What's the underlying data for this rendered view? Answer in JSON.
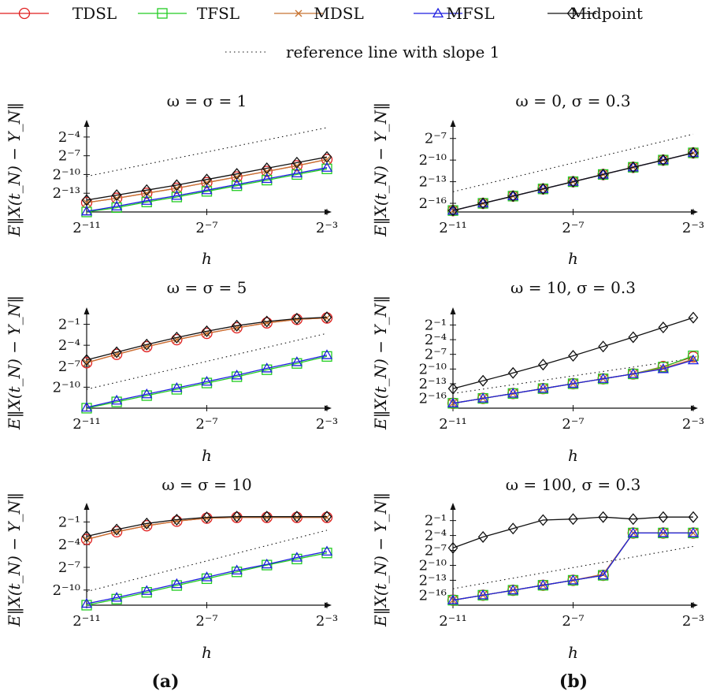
{
  "legend": {
    "items": [
      {
        "label": "TDSL",
        "color": "#e01f1f",
        "marker": "circle"
      },
      {
        "label": "TFSL",
        "color": "#22cc22",
        "marker": "square"
      },
      {
        "label": "MDSL",
        "color": "#c87533",
        "marker": "cross"
      },
      {
        "label": "MFSL",
        "color": "#1f1fe0",
        "marker": "triangle"
      },
      {
        "label": "Midpoint",
        "color": "#111111",
        "marker": "diamond"
      }
    ],
    "reference": "reference line with slope 1"
  },
  "subfig_labels": [
    "(a)",
    "(b)"
  ],
  "chart_data": [
    {
      "type": "line",
      "title": "ω = σ = 1",
      "xlabel": "h",
      "ylabel": "E‖X(t_N) − Y_N‖",
      "x": [
        -11,
        -10,
        -9,
        -8,
        -7,
        -6,
        -5,
        -4,
        -3
      ],
      "xticks": [
        -11,
        -7,
        -3
      ],
      "yticks": [
        -4,
        -7,
        -10,
        -13
      ],
      "ylim": [
        -16,
        -2.5
      ],
      "series": [
        {
          "name": "TDSL",
          "values": [
            -14.5,
            -13.8,
            -13,
            -12.2,
            -11.3,
            -10.4,
            -9.5,
            -8.6,
            -7.6
          ]
        },
        {
          "name": "TFSL",
          "values": [
            -16,
            -15.3,
            -14.4,
            -13.6,
            -12.7,
            -11.8,
            -10.9,
            -10,
            -9.1
          ]
        },
        {
          "name": "MDSL",
          "values": [
            -14.5,
            -13.8,
            -13,
            -12.2,
            -11.3,
            -10.4,
            -9.5,
            -8.6,
            -7.6
          ]
        },
        {
          "name": "MFSL",
          "values": [
            -15.9,
            -15.1,
            -14.2,
            -13.4,
            -12.5,
            -11.6,
            -10.7,
            -9.8,
            -8.9
          ]
        },
        {
          "name": "Midpoint",
          "values": [
            -14.1,
            -13.3,
            -12.5,
            -11.7,
            -10.8,
            -9.9,
            -9,
            -8.1,
            -7.2
          ]
        }
      ],
      "reference": [
        -10.3,
        -2.5
      ]
    },
    {
      "type": "line",
      "title": "ω = 0, σ = 0.3",
      "xlabel": "h",
      "ylabel": "E‖X(t_N) − Y_N‖",
      "x": [
        -11,
        -10,
        -9,
        -8,
        -7,
        -6,
        -5,
        -4,
        -3
      ],
      "xticks": [
        -11,
        -7,
        -3
      ],
      "yticks": [
        -7,
        -10,
        -13,
        -16
      ],
      "ylim": [
        -17.2,
        -5.5
      ],
      "series": [
        {
          "name": "TDSL",
          "values": [
            -17,
            -16,
            -15,
            -14,
            -13,
            -12,
            -11,
            -10,
            -9
          ]
        },
        {
          "name": "TFSL",
          "values": [
            -17,
            -16,
            -15,
            -14,
            -13,
            -12,
            -11,
            -10,
            -9
          ]
        },
        {
          "name": "MDSL",
          "values": [
            -17,
            -16,
            -15,
            -14,
            -13,
            -12,
            -11,
            -10,
            -9
          ]
        },
        {
          "name": "MFSL",
          "values": [
            -17,
            -16,
            -15,
            -14,
            -13,
            -12,
            -11,
            -10,
            -9
          ]
        },
        {
          "name": "Midpoint",
          "values": [
            -17,
            -16,
            -15,
            -14,
            -13,
            -12,
            -11,
            -10,
            -9
          ]
        }
      ],
      "reference": [
        -14.4,
        -6.4
      ]
    },
    {
      "type": "line",
      "title": "ω = σ = 5",
      "xlabel": "h",
      "ylabel": "E‖X(t_N) − Y_N‖",
      "x": [
        -11,
        -10,
        -9,
        -8,
        -7,
        -6,
        -5,
        -4,
        -3
      ],
      "xticks": [
        -11,
        -7,
        -3
      ],
      "yticks": [
        -1,
        -4,
        -7,
        -10
      ],
      "ylim": [
        -13,
        0.3
      ],
      "series": [
        {
          "name": "TDSL",
          "values": [
            -6.5,
            -5.3,
            -4.2,
            -3.2,
            -2.3,
            -1.5,
            -0.8,
            -0.3,
            -0.1
          ]
        },
        {
          "name": "TFSL",
          "values": [
            -13,
            -12.1,
            -11.2,
            -10.3,
            -9.4,
            -8.5,
            -7.5,
            -6.6,
            -5.6
          ]
        },
        {
          "name": "MDSL",
          "values": [
            -6.5,
            -5.3,
            -4.2,
            -3.2,
            -2.3,
            -1.5,
            -0.8,
            -0.3,
            -0.1
          ]
        },
        {
          "name": "MFSL",
          "values": [
            -12.9,
            -11.9,
            -11,
            -10.1,
            -9.2,
            -8.3,
            -7.3,
            -6.4,
            -5.4
          ]
        },
        {
          "name": "Midpoint",
          "values": [
            -6.1,
            -5,
            -3.9,
            -2.9,
            -2,
            -1.2,
            -0.6,
            -0.2,
            0
          ]
        }
      ],
      "reference": [
        -10.3,
        -2.3
      ]
    },
    {
      "type": "line",
      "title": "ω = 10, σ = 0.3",
      "xlabel": "h",
      "ylabel": "E‖X(t_N) − Y_N‖",
      "x": [
        -11,
        -10,
        -9,
        -8,
        -7,
        -6,
        -5,
        -4,
        -3
      ],
      "xticks": [
        -11,
        -7,
        -3
      ],
      "yticks": [
        -1,
        -4,
        -7,
        -10,
        -13,
        -16
      ],
      "ylim": [
        -18,
        1
      ],
      "series": [
        {
          "name": "TDSL",
          "values": [
            -17,
            -16,
            -15,
            -14,
            -13,
            -12,
            -11,
            -9.5,
            -7.5
          ]
        },
        {
          "name": "TFSL",
          "values": [
            -17,
            -16,
            -15,
            -14,
            -13,
            -12,
            -11,
            -9.6,
            -7.3
          ]
        },
        {
          "name": "MDSL",
          "values": [
            -17,
            -16,
            -15,
            -14,
            -13,
            -12,
            -11,
            -9.8,
            -8
          ]
        },
        {
          "name": "MFSL",
          "values": [
            -17,
            -16,
            -15,
            -14,
            -13,
            -12,
            -11,
            -10,
            -8.2
          ]
        },
        {
          "name": "Midpoint",
          "values": [
            -14,
            -12.4,
            -10.8,
            -9.1,
            -7.3,
            -5.4,
            -3.5,
            -1.5,
            0.5
          ]
        }
      ],
      "reference": [
        -15,
        -7.8
      ]
    },
    {
      "type": "line",
      "title": "ω = σ = 10",
      "xlabel": "h",
      "ylabel": "E‖X(t_N) − Y_N‖",
      "x": [
        -11,
        -10,
        -9,
        -8,
        -7,
        -6,
        -5,
        -4,
        -3
      ],
      "xticks": [
        -11,
        -7,
        -3
      ],
      "yticks": [
        -1,
        -4,
        -7,
        -10
      ],
      "ylim": [
        -12,
        0.5
      ],
      "series": [
        {
          "name": "TDSL",
          "values": [
            -3.3,
            -2.3,
            -1.5,
            -0.9,
            -0.5,
            -0.4,
            -0.4,
            -0.4,
            -0.4
          ]
        },
        {
          "name": "TFSL",
          "values": [
            -12,
            -11.2,
            -10.3,
            -9.4,
            -8.5,
            -7.6,
            -6.7,
            -5.9,
            -5.1
          ]
        },
        {
          "name": "MDSL",
          "values": [
            -3.3,
            -2.3,
            -1.5,
            -0.9,
            -0.5,
            -0.4,
            -0.4,
            -0.4,
            -0.4
          ]
        },
        {
          "name": "MFSL",
          "values": [
            -11.8,
            -11,
            -10.1,
            -9.2,
            -8.3,
            -7.4,
            -6.6,
            -5.7,
            -4.9
          ]
        },
        {
          "name": "Midpoint",
          "values": [
            -2.9,
            -2,
            -1.2,
            -0.7,
            -0.4,
            -0.3,
            -0.3,
            -0.3,
            -0.3
          ]
        }
      ],
      "reference": [
        -10.2,
        -2.1
      ]
    },
    {
      "type": "line",
      "title": "ω = 100, σ = 0.3",
      "xlabel": "h",
      "ylabel": "E‖X(t_N) − Y_N‖",
      "x": [
        -11,
        -10,
        -9,
        -8,
        -7,
        -6,
        -5,
        -4,
        -3
      ],
      "xticks": [
        -11,
        -7,
        -3
      ],
      "yticks": [
        -1,
        -4,
        -7,
        -10,
        -13,
        -16
      ],
      "ylim": [
        -18,
        1
      ],
      "series": [
        {
          "name": "TDSL",
          "values": [
            -17,
            -16,
            -15,
            -14,
            -13,
            -12,
            -3.5,
            -3.5,
            -3.5
          ]
        },
        {
          "name": "TFSL",
          "values": [
            -17,
            -16,
            -15,
            -14,
            -13,
            -12,
            -3.5,
            -3.5,
            -3.5
          ]
        },
        {
          "name": "MDSL",
          "values": [
            -17,
            -16,
            -15,
            -14,
            -13,
            -11.8,
            -3.5,
            -3.5,
            -3.5
          ]
        },
        {
          "name": "MFSL",
          "values": [
            -17,
            -16,
            -15,
            -14,
            -13,
            -12,
            -3.5,
            -3.5,
            -3.5
          ]
        },
        {
          "name": "Midpoint",
          "values": [
            -6.5,
            -4.3,
            -2.6,
            -0.9,
            -0.7,
            -0.3,
            -0.7,
            -0.3,
            -0.3
          ]
        }
      ],
      "reference": [
        -14.7,
        -6.2
      ]
    }
  ]
}
